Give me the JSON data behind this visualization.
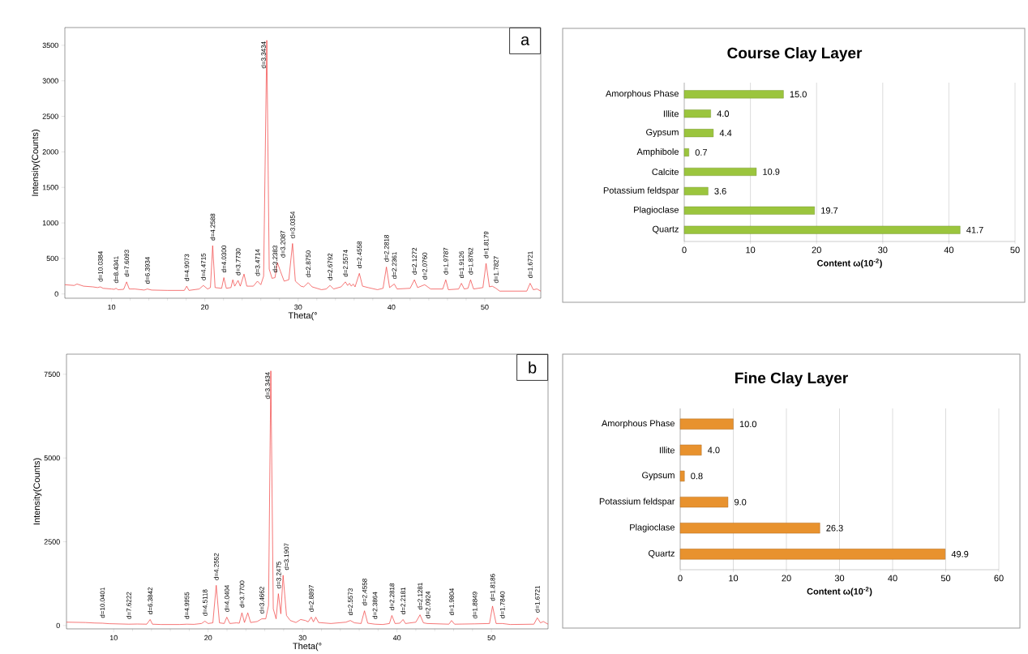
{
  "chart_data": [
    {
      "type": "line",
      "xlabel": "Theta(°",
      "ylabel": "Intensity(Counts)",
      "xlim": [
        5,
        56
      ],
      "ylim": [
        -60,
        3750
      ],
      "xticks": [
        10,
        20,
        30,
        40,
        50
      ],
      "yticks": [
        0,
        500,
        1000,
        1500,
        2000,
        2500,
        3000,
        3500
      ],
      "x": [
        5,
        6,
        6.3,
        7,
        8,
        8.5,
        8.8,
        9.1,
        10,
        10.3,
        10.48,
        10.7,
        11.3,
        11.62,
        11.9,
        12.5,
        13.5,
        13.84,
        14.3,
        16,
        17.8,
        18.06,
        18.3,
        19.4,
        19.84,
        20.3,
        20.6,
        20.84,
        21.1,
        21.8,
        22.04,
        22.3,
        22.8,
        23.0,
        23.2,
        23.56,
        23.8,
        24.2,
        24.5,
        25.2,
        25.64,
        26.0,
        26.3,
        26.64,
        26.9,
        27.2,
        27.52,
        27.78,
        28.1,
        28.5,
        29.0,
        29.4,
        29.7,
        30.3,
        30.6,
        31.08,
        31.5,
        32.5,
        33.0,
        33.42,
        33.8,
        34.6,
        35.06,
        35.3,
        35.5,
        35.7,
        35.9,
        36.1,
        36.56,
        36.9,
        37.5,
        38.5,
        39.1,
        39.46,
        39.8,
        40.3,
        40.6,
        42.0,
        42.46,
        42.8,
        43.56,
        44.2,
        45.5,
        45.82,
        46.1,
        47.2,
        47.5,
        47.8,
        48.2,
        48.48,
        48.8,
        49.8,
        50.14,
        50.5,
        50.8,
        51.2,
        51.6,
        53,
        54.5,
        54.86,
        55.2,
        55.6,
        56
      ],
      "series": [
        {
          "color": "#f03c3c",
          "values": [
            130,
            120,
            140,
            110,
            100,
            90,
            100,
            80,
            70,
            65,
            80,
            60,
            65,
            170,
            70,
            70,
            55,
            70,
            55,
            50,
            50,
            110,
            50,
            70,
            120,
            70,
            90,
            680,
            90,
            80,
            230,
            80,
            90,
            200,
            110,
            190,
            110,
            280,
            110,
            110,
            180,
            130,
            250,
            3570,
            350,
            220,
            230,
            440,
            320,
            180,
            200,
            710,
            180,
            110,
            100,
            160,
            100,
            60,
            70,
            120,
            70,
            100,
            170,
            120,
            150,
            110,
            140,
            100,
            290,
            110,
            90,
            60,
            80,
            380,
            90,
            140,
            70,
            80,
            200,
            90,
            130,
            70,
            70,
            200,
            60,
            70,
            150,
            70,
            80,
            200,
            70,
            90,
            430,
            100,
            110,
            80,
            40,
            40,
            40,
            150,
            60,
            70,
            40
          ]
        }
      ],
      "annotations": [
        "a",
        {
          "text": "d=10.0384",
          "x": 8.8,
          "y": 100
        },
        {
          "text": "d=8.4341",
          "x": 10.48,
          "y": 80
        },
        {
          "text": "d=7.6093",
          "x": 11.62,
          "y": 170
        },
        {
          "text": "d=6.3934",
          "x": 13.84,
          "y": 70
        },
        {
          "text": "d=4.9073",
          "x": 18.06,
          "y": 110
        },
        {
          "text": "d=4.4715",
          "x": 19.84,
          "y": 120
        },
        {
          "text": "d=4.2588",
          "x": 20.84,
          "y": 680
        },
        {
          "text": "d=4.0300",
          "x": 22.04,
          "y": 230
        },
        {
          "text": "d=3.7730",
          "x": 23.56,
          "y": 190
        },
        {
          "text": "d=3.4714",
          "x": 25.64,
          "y": 180
        },
        {
          "text": "d=3.3434",
          "x": 26.64,
          "y": 3570
        },
        {
          "text": "d=3.2383",
          "x": 27.52,
          "y": 230
        },
        {
          "text": "d=3.2087",
          "x": 27.78,
          "y": 440
        },
        {
          "text": "d=3.0354",
          "x": 29.4,
          "y": 710
        },
        {
          "text": "d=2.8750",
          "x": 31.08,
          "y": 160
        },
        {
          "text": "d=2.6792",
          "x": 33.42,
          "y": 120
        },
        {
          "text": "d=2.5574",
          "x": 35.06,
          "y": 170
        },
        {
          "text": "d=2.4558",
          "x": 36.56,
          "y": 290
        },
        {
          "text": "d=2.2818",
          "x": 39.46,
          "y": 380
        },
        {
          "text": "d=2.2361",
          "x": 40.3,
          "y": 140
        },
        {
          "text": "d=2.1272",
          "x": 42.46,
          "y": 200
        },
        {
          "text": "d=2.0760",
          "x": 43.56,
          "y": 130
        },
        {
          "text": "d=1.9787",
          "x": 45.82,
          "y": 200
        },
        {
          "text": "d=1.9126",
          "x": 47.5,
          "y": 150
        },
        {
          "text": "d=1.8762",
          "x": 48.48,
          "y": 200
        },
        {
          "text": "d=1.8179",
          "x": 50.14,
          "y": 430
        },
        {
          "text": "d=1.7827",
          "x": 51.2,
          "y": 80
        },
        {
          "text": "d=1.6721",
          "x": 54.86,
          "y": 150
        }
      ]
    },
    {
      "type": "bar",
      "orientation": "horizontal",
      "title": "Course Clay Layer",
      "xlabel": "Content ω(10$^{-2}$)",
      "color": "#9bc53d",
      "grid": "x",
      "xlim": [
        0,
        50
      ],
      "xticks": [
        0,
        10,
        20,
        30,
        40,
        50
      ],
      "categories": [
        "Amorphous Phase",
        "Illite",
        "Gypsum",
        "Amphibole",
        "Calcite",
        "Potassium feldspar",
        "Plagioclase",
        "Quartz"
      ],
      "values": [
        15.0,
        4.0,
        4.4,
        0.7,
        10.9,
        3.6,
        19.7,
        41.7
      ],
      "value_labels": [
        "15.0",
        "4.0",
        "4.4",
        "0.7",
        "10.9",
        "3.6",
        "19.7",
        "41.7"
      ]
    },
    {
      "type": "line",
      "xlabel": "Theta(°",
      "ylabel": "Intensity(Counts)",
      "xlim": [
        5,
        56
      ],
      "ylim": [
        -100,
        8100
      ],
      "xticks": [
        10,
        20,
        30,
        40,
        50
      ],
      "yticks": [
        0,
        2500,
        5000,
        7500
      ],
      "x": [
        5,
        7,
        8,
        8.8,
        9.5,
        11.6,
        12.5,
        13.5,
        13.86,
        14.1,
        15,
        17,
        17.74,
        18.5,
        19.3,
        19.66,
        20.0,
        20.5,
        20.86,
        21.2,
        21.7,
        21.98,
        22.3,
        23.0,
        23.3,
        23.58,
        23.85,
        24.2,
        24.5,
        25.2,
        25.68,
        26.1,
        26.4,
        26.64,
        26.9,
        27.2,
        27.44,
        27.7,
        27.94,
        28.3,
        28.7,
        29.3,
        29.8,
        30.3,
        30.6,
        30.92,
        31.15,
        31.4,
        31.7,
        33,
        34.6,
        35.06,
        35.5,
        36.2,
        36.56,
        36.9,
        37.66,
        38.5,
        39.2,
        39.46,
        39.8,
        40.3,
        40.64,
        40.9,
        42.0,
        42.44,
        42.8,
        43.2,
        45.5,
        45.78,
        46.1,
        48.24,
        49.8,
        50.12,
        50.5,
        51.16,
        52,
        54.5,
        54.86,
        55.2,
        55.5,
        56
      ],
      "series": [
        {
          "color": "#f03c3c",
          "values": [
            100,
            90,
            75,
            70,
            55,
            40,
            45,
            40,
            180,
            40,
            30,
            30,
            40,
            35,
            60,
            130,
            60,
            80,
            1200,
            80,
            60,
            250,
            60,
            80,
            70,
            380,
            90,
            380,
            90,
            120,
            200,
            200,
            600,
            7600,
            500,
            200,
            950,
            350,
            1500,
            300,
            150,
            90,
            180,
            150,
            110,
            250,
            110,
            250,
            90,
            60,
            100,
            150,
            80,
            60,
            440,
            70,
            40,
            30,
            60,
            300,
            60,
            70,
            180,
            60,
            100,
            320,
            80,
            60,
            40,
            150,
            40,
            50,
            60,
            580,
            60,
            60,
            30,
            40,
            230,
            80,
            120,
            40
          ]
        }
      ],
      "annotations": [
        "b",
        {
          "text": "d=10.0401",
          "x": 8.8,
          "y": 70
        },
        {
          "text": "d=7.6222",
          "x": 11.6,
          "y": 40
        },
        {
          "text": "d=6.3842",
          "x": 13.86,
          "y": 180
        },
        {
          "text": "d=4.9955",
          "x": 17.74,
          "y": 40
        },
        {
          "text": "d=4.5118",
          "x": 19.66,
          "y": 130
        },
        {
          "text": "d=4.2552",
          "x": 20.86,
          "y": 1200
        },
        {
          "text": "d=4.0404",
          "x": 21.98,
          "y": 250
        },
        {
          "text": "d=3.7700",
          "x": 23.58,
          "y": 380
        },
        {
          "text": "d=3.4662",
          "x": 25.68,
          "y": 200
        },
        {
          "text": "d=3.3434",
          "x": 26.64,
          "y": 7600
        },
        {
          "text": "d=3.2475",
          "x": 27.44,
          "y": 950
        },
        {
          "text": "d=3.1907",
          "x": 27.94,
          "y": 1500
        },
        {
          "text": "d=2.8897",
          "x": 30.92,
          "y": 250
        },
        {
          "text": "d=2.5573",
          "x": 35.06,
          "y": 150
        },
        {
          "text": "d=2.4558",
          "x": 36.56,
          "y": 440
        },
        {
          "text": "d=2.3864",
          "x": 37.66,
          "y": 40
        },
        {
          "text": "d=2.2818",
          "x": 39.46,
          "y": 300
        },
        {
          "text": "d=2.2181",
          "x": 40.64,
          "y": 180
        },
        {
          "text": "d=2.1281",
          "x": 42.44,
          "y": 320
        },
        {
          "text": "d=2.0924",
          "x": 43.2,
          "y": 60
        },
        {
          "text": "d=1.9804",
          "x": 45.78,
          "y": 150
        },
        {
          "text": "d=1.8849",
          "x": 48.24,
          "y": 50
        },
        {
          "text": "d=1.8186",
          "x": 50.12,
          "y": 580
        },
        {
          "text": "d=1.7840",
          "x": 51.16,
          "y": 60
        },
        {
          "text": "d=1.6721",
          "x": 54.86,
          "y": 230
        }
      ]
    },
    {
      "type": "bar",
      "orientation": "horizontal",
      "title": "Fine Clay Layer",
      "xlabel": "Content ω(10$^{-2}$)",
      "color": "#e8922e",
      "grid": "x",
      "xlim": [
        0,
        60
      ],
      "xticks": [
        0,
        10,
        20,
        30,
        40,
        50,
        60
      ],
      "categories": [
        "Amorphous Phase",
        "Illite",
        "Gypsum",
        "Potassium feldspar",
        "Plagioclase",
        "Quartz"
      ],
      "values": [
        10.0,
        4.0,
        0.8,
        9.0,
        26.3,
        49.9
      ],
      "value_labels": [
        "10.0",
        "4.0",
        "0.8",
        "9.0",
        "26.3",
        "49.9"
      ]
    }
  ]
}
